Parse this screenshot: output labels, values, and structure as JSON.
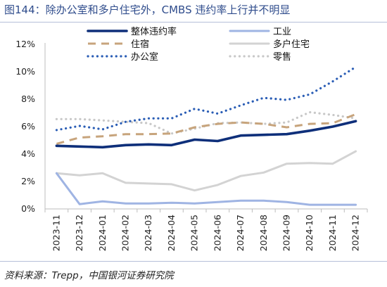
{
  "title": "图144：除办公室和多户住宅外，CMBS 违约率上行并不明显",
  "source": "资料来源：Trepp，中国银河证券研究院",
  "chart_data": {
    "type": "line",
    "x": [
      "2023-11",
      "2023-12",
      "2024-01",
      "2024-02",
      "2024-03",
      "2024-04",
      "2024-05",
      "2024-06",
      "2024-07",
      "2024-08",
      "2024-09",
      "2024-10",
      "2024-11",
      "2024-12"
    ],
    "ylim": [
      0,
      12
    ],
    "yticks": [
      "0%",
      "2%",
      "4%",
      "6%",
      "8%",
      "10%",
      "12%"
    ],
    "grid": false,
    "legend_position": "top",
    "series": [
      {
        "name": "整体违约率",
        "color": "#0e2f7a",
        "style": "solid-thick",
        "values": [
          4.6,
          4.55,
          4.5,
          4.65,
          4.7,
          4.65,
          5.05,
          4.95,
          5.35,
          5.4,
          5.45,
          5.7,
          6.0,
          6.4
        ]
      },
      {
        "name": "工业",
        "color": "#9fb4e3",
        "style": "solid",
        "values": [
          2.6,
          0.35,
          0.55,
          0.4,
          0.4,
          0.45,
          0.4,
          0.5,
          0.6,
          0.6,
          0.5,
          0.3,
          0.3,
          0.3
        ]
      },
      {
        "name": "住宿",
        "color": "#c7a47c",
        "style": "dashed",
        "values": [
          4.75,
          5.2,
          5.3,
          5.45,
          5.45,
          5.5,
          5.95,
          6.2,
          6.3,
          6.2,
          5.95,
          6.2,
          6.25,
          6.9
        ]
      },
      {
        "name": "多户住宅",
        "color": "#d3d3d3",
        "style": "solid",
        "values": [
          2.6,
          2.45,
          2.6,
          1.9,
          1.85,
          1.8,
          1.35,
          1.75,
          2.4,
          2.65,
          3.3,
          3.35,
          3.3,
          4.2
        ]
      },
      {
        "name": "办公室",
        "color": "#2a5db5",
        "style": "dotted",
        "values": [
          5.75,
          6.05,
          5.8,
          6.35,
          6.6,
          6.6,
          7.3,
          6.95,
          7.55,
          8.1,
          7.95,
          8.35,
          9.3,
          10.35
        ]
      },
      {
        "name": "零售",
        "color": "#c8c8c8",
        "style": "dotted",
        "values": [
          6.55,
          6.55,
          6.45,
          6.35,
          6.25,
          5.5,
          5.85,
          6.25,
          6.3,
          6.2,
          6.3,
          7.05,
          6.85,
          6.6
        ]
      }
    ]
  }
}
